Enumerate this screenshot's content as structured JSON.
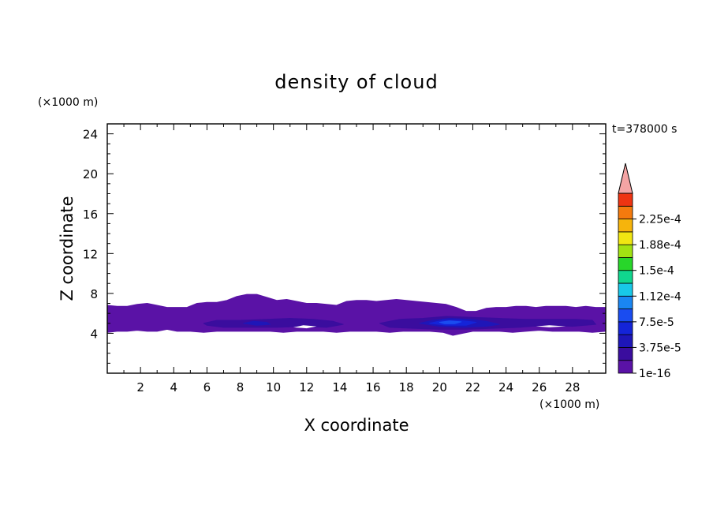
{
  "chart_data": {
    "type": "heatmap",
    "title": "density of cloud",
    "time_label": "t=378000 s",
    "xlabel": "X coordinate",
    "ylabel": "Z coordinate",
    "x_unit": "(×1000 m)",
    "y_unit": "(×1000 m)",
    "xlim": [
      0,
      30
    ],
    "ylim": [
      0,
      25
    ],
    "x_ticks": [
      2,
      4,
      6,
      8,
      10,
      12,
      14,
      16,
      18,
      20,
      22,
      24,
      26,
      28
    ],
    "y_ticks": [
      4,
      8,
      12,
      16,
      20,
      24
    ],
    "grid": false,
    "colorbar": {
      "min": 1e-16,
      "step": 1.875e-05,
      "levels": 14,
      "extend": "max",
      "labels": [
        "1e-16",
        "3.75e-5",
        "7.5e-5",
        "1.12e-4",
        "1.5e-4",
        "1.88e-4",
        "2.25e-4"
      ],
      "colors": [
        "#5a12a6",
        "#3a0d9e",
        "#1e16b8",
        "#1424d8",
        "#1a4cf0",
        "#1a86f2",
        "#18c8e8",
        "#10d68e",
        "#28d62a",
        "#a2e212",
        "#f0e612",
        "#f6b40c",
        "#f47a0e",
        "#ee3412"
      ],
      "extend_color": "#f4a4a4"
    },
    "regions": [
      {
        "level": 0,
        "description_key": "cloud-layer-envelope",
        "boundary": [
          [
            0.0,
            6.8
          ],
          [
            0.6,
            6.7
          ],
          [
            1.2,
            6.7
          ],
          [
            1.8,
            6.9
          ],
          [
            2.4,
            7.0
          ],
          [
            3.0,
            6.8
          ],
          [
            3.6,
            6.6
          ],
          [
            4.2,
            6.6
          ],
          [
            4.8,
            6.6
          ],
          [
            5.4,
            7.0
          ],
          [
            6.0,
            7.1
          ],
          [
            6.6,
            7.1
          ],
          [
            7.2,
            7.3
          ],
          [
            7.8,
            7.7
          ],
          [
            8.4,
            7.9
          ],
          [
            9.0,
            7.9
          ],
          [
            9.6,
            7.6
          ],
          [
            10.2,
            7.3
          ],
          [
            10.8,
            7.4
          ],
          [
            11.4,
            7.2
          ],
          [
            12.0,
            7.0
          ],
          [
            12.6,
            7.0
          ],
          [
            13.2,
            6.9
          ],
          [
            13.8,
            6.8
          ],
          [
            14.4,
            7.2
          ],
          [
            15.0,
            7.3
          ],
          [
            15.6,
            7.3
          ],
          [
            16.2,
            7.2
          ],
          [
            16.8,
            7.3
          ],
          [
            17.4,
            7.4
          ],
          [
            18.0,
            7.3
          ],
          [
            18.6,
            7.2
          ],
          [
            19.2,
            7.1
          ],
          [
            19.8,
            7.0
          ],
          [
            20.4,
            6.9
          ],
          [
            21.0,
            6.6
          ],
          [
            21.6,
            6.2
          ],
          [
            22.2,
            6.2
          ],
          [
            22.8,
            6.5
          ],
          [
            23.4,
            6.6
          ],
          [
            24.0,
            6.6
          ],
          [
            24.6,
            6.7
          ],
          [
            25.2,
            6.7
          ],
          [
            25.8,
            6.6
          ],
          [
            26.4,
            6.7
          ],
          [
            27.0,
            6.7
          ],
          [
            27.6,
            6.7
          ],
          [
            28.2,
            6.6
          ],
          [
            28.8,
            6.7
          ],
          [
            29.4,
            6.6
          ],
          [
            30.0,
            6.6
          ],
          [
            30.0,
            4.2
          ],
          [
            29.2,
            4.1
          ],
          [
            28.4,
            4.2
          ],
          [
            27.6,
            4.2
          ],
          [
            26.8,
            4.2
          ],
          [
            26.0,
            4.3
          ],
          [
            25.2,
            4.2
          ],
          [
            24.4,
            4.1
          ],
          [
            23.6,
            4.2
          ],
          [
            22.8,
            4.2
          ],
          [
            22.0,
            4.2
          ],
          [
            21.4,
            4.0
          ],
          [
            20.8,
            3.8
          ],
          [
            20.2,
            4.1
          ],
          [
            19.4,
            4.2
          ],
          [
            18.6,
            4.2
          ],
          [
            17.8,
            4.2
          ],
          [
            17.0,
            4.1
          ],
          [
            16.2,
            4.2
          ],
          [
            15.4,
            4.2
          ],
          [
            14.6,
            4.2
          ],
          [
            13.8,
            4.1
          ],
          [
            13.0,
            4.2
          ],
          [
            12.2,
            4.2
          ],
          [
            11.4,
            4.2
          ],
          [
            10.6,
            4.1
          ],
          [
            9.8,
            4.2
          ],
          [
            9.0,
            4.2
          ],
          [
            8.2,
            4.2
          ],
          [
            7.4,
            4.2
          ],
          [
            6.6,
            4.2
          ],
          [
            5.8,
            4.1
          ],
          [
            5.0,
            4.2
          ],
          [
            4.2,
            4.2
          ],
          [
            3.6,
            4.4
          ],
          [
            3.0,
            4.2
          ],
          [
            2.4,
            4.2
          ],
          [
            1.8,
            4.3
          ],
          [
            1.2,
            4.2
          ],
          [
            0.6,
            4.2
          ],
          [
            0.0,
            4.1
          ]
        ]
      },
      {
        "level": 1,
        "description_key": "inner-band-left",
        "boundary": [
          [
            5.8,
            5.0
          ],
          [
            6.6,
            5.3
          ],
          [
            8.0,
            5.3
          ],
          [
            9.6,
            5.4
          ],
          [
            11.0,
            5.5
          ],
          [
            12.4,
            5.4
          ],
          [
            13.6,
            5.2
          ],
          [
            14.2,
            4.9
          ],
          [
            13.2,
            4.6
          ],
          [
            11.8,
            4.7
          ],
          [
            10.2,
            4.6
          ],
          [
            8.6,
            4.6
          ],
          [
            7.0,
            4.6
          ],
          [
            6.0,
            4.8
          ]
        ]
      },
      {
        "level": 1,
        "description_key": "inner-band-right",
        "boundary": [
          [
            16.4,
            5.0
          ],
          [
            17.6,
            5.4
          ],
          [
            19.0,
            5.5
          ],
          [
            20.4,
            5.7
          ],
          [
            22.0,
            5.6
          ],
          [
            23.6,
            5.5
          ],
          [
            25.2,
            5.4
          ],
          [
            26.8,
            5.4
          ],
          [
            28.2,
            5.4
          ],
          [
            29.2,
            5.3
          ],
          [
            29.4,
            4.9
          ],
          [
            28.0,
            4.7
          ],
          [
            26.4,
            4.8
          ],
          [
            24.8,
            4.6
          ],
          [
            23.2,
            4.5
          ],
          [
            21.6,
            4.4
          ],
          [
            20.0,
            4.4
          ],
          [
            18.4,
            4.5
          ],
          [
            17.0,
            4.6
          ]
        ]
      },
      {
        "level": 2,
        "description_key": "dense-core-a",
        "boundary": [
          [
            18.8,
            5.0
          ],
          [
            19.6,
            5.3
          ],
          [
            20.6,
            5.5
          ],
          [
            21.8,
            5.4
          ],
          [
            22.8,
            5.2
          ],
          [
            23.6,
            4.9
          ],
          [
            22.8,
            4.7
          ],
          [
            21.4,
            4.6
          ],
          [
            20.0,
            4.7
          ]
        ]
      },
      {
        "level": 2,
        "description_key": "dense-core-b",
        "boundary": [
          [
            8.2,
            5.0
          ],
          [
            8.8,
            5.2
          ],
          [
            9.6,
            5.1
          ],
          [
            9.8,
            4.9
          ],
          [
            9.0,
            4.8
          ]
        ]
      },
      {
        "level": 3,
        "description_key": "dense-core-c",
        "boundary": [
          [
            19.4,
            5.0
          ],
          [
            20.2,
            5.3
          ],
          [
            21.2,
            5.3
          ],
          [
            22.2,
            5.1
          ],
          [
            21.6,
            4.8
          ],
          [
            20.4,
            4.8
          ]
        ]
      },
      {
        "level": 4,
        "description_key": "peak-core",
        "boundary": [
          [
            20.0,
            5.1
          ],
          [
            20.6,
            5.25
          ],
          [
            21.3,
            5.15
          ],
          [
            20.9,
            4.95
          ],
          [
            20.3,
            4.95
          ]
        ]
      }
    ],
    "gaps": [
      {
        "description_key": "clear-gap-1",
        "boundary": [
          [
            11.2,
            4.6
          ],
          [
            11.8,
            4.8
          ],
          [
            12.6,
            4.7
          ],
          [
            12.0,
            4.5
          ]
        ]
      },
      {
        "description_key": "clear-gap-2",
        "boundary": [
          [
            25.8,
            4.7
          ],
          [
            26.6,
            4.8
          ],
          [
            27.6,
            4.7
          ],
          [
            26.6,
            4.6
          ]
        ]
      }
    ]
  }
}
